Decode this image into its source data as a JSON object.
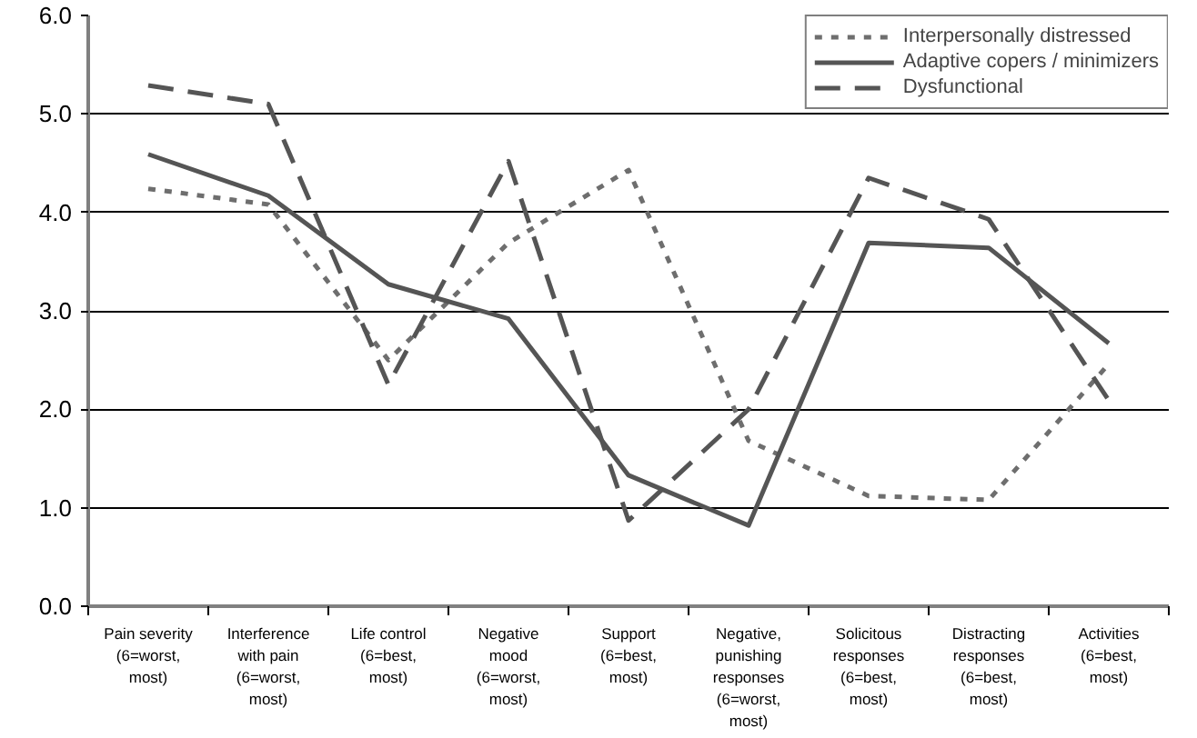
{
  "chart_data": {
    "type": "line",
    "categories": [
      "Pain severity\n(6=worst,\nmost)",
      "Interference\nwith pain\n(6=worst,\nmost)",
      "Life control\n(6=best,\nmost)",
      "Negative\nmood\n(6=worst,\nmost)",
      "Support\n(6=best,\nmost)",
      "Negative,\npunishing\nresponses\n(6=worst,\nmost)",
      "Solicitous\nresponses\n(6=best,\nmost)",
      "Distracting\nresponses\n(6=best,\nmost)",
      "Activities\n(6=best,\nmost)"
    ],
    "series": [
      {
        "name": "Interpersonally distressed",
        "color": "#6e6e6e",
        "line_style": "dotted",
        "values": [
          4.24,
          4.08,
          2.5,
          3.69,
          4.43,
          1.68,
          1.12,
          1.08,
          2.46
        ]
      },
      {
        "name": "Adaptive copers / minimizers",
        "color": "#555555",
        "line_style": "solid",
        "values": [
          4.59,
          4.17,
          3.27,
          2.92,
          1.33,
          0.82,
          3.69,
          3.64,
          2.67
        ]
      },
      {
        "name": "Dysfunctional",
        "color": "#555555",
        "line_style": "dashed",
        "values": [
          5.29,
          5.1,
          2.25,
          4.52,
          0.87,
          2.0,
          4.35,
          3.93,
          2.09
        ]
      }
    ],
    "ylim": [
      0,
      6
    ],
    "yticks": [
      {
        "value": 0,
        "label": "0.0"
      },
      {
        "value": 1,
        "label": "1.0"
      },
      {
        "value": 2,
        "label": "2.0"
      },
      {
        "value": 3,
        "label": "3.0"
      },
      {
        "value": 4,
        "label": "4.0"
      },
      {
        "value": 5,
        "label": "5.0"
      },
      {
        "value": 6,
        "label": "6.0"
      }
    ],
    "grid": "y",
    "legend": "top right",
    "marker": "none"
  }
}
